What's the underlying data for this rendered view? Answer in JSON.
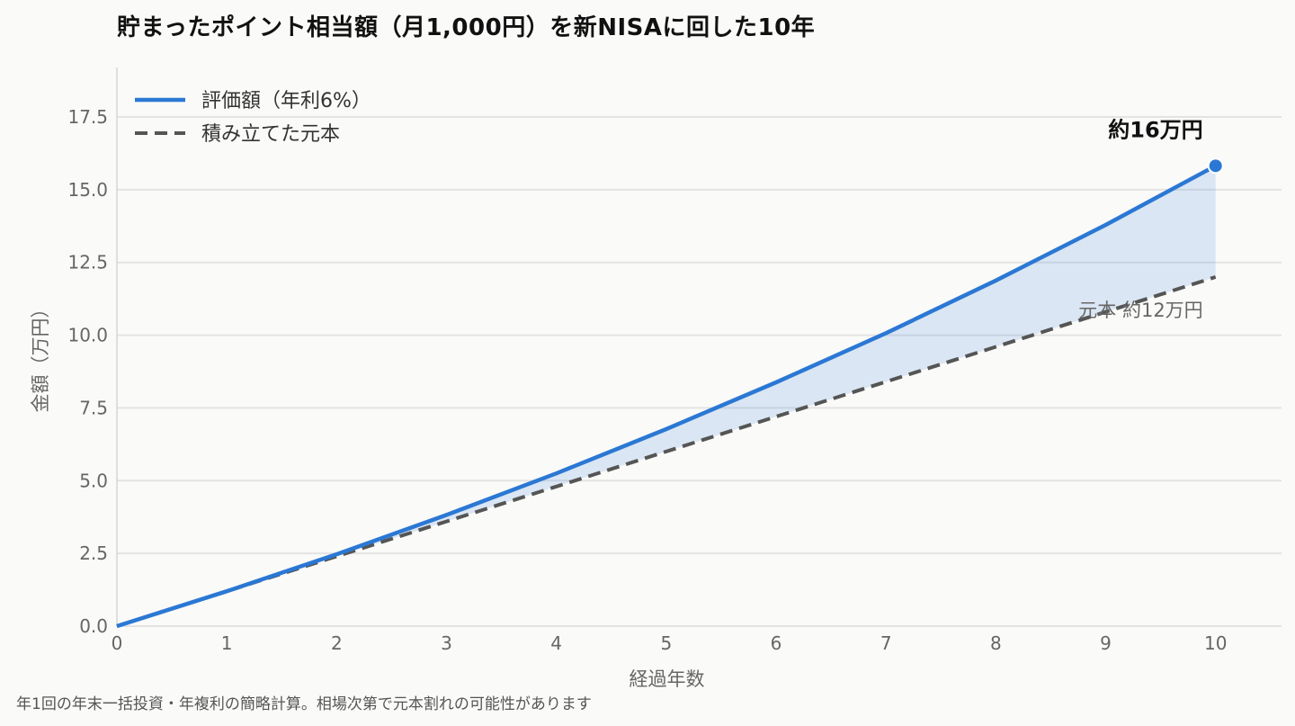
{
  "chart_data": {
    "type": "line",
    "title": "貯まったポイント相当額（月1,000円）を新NISAに回した10年",
    "xlabel": "経過年数",
    "ylabel": "金額（万円）",
    "x": [
      0,
      1,
      2,
      3,
      4,
      5,
      6,
      7,
      8,
      9,
      10
    ],
    "xlim": [
      0,
      10.6
    ],
    "ylim": [
      0,
      19.2
    ],
    "xticks": [
      "0",
      "1",
      "2",
      "3",
      "4",
      "5",
      "6",
      "7",
      "8",
      "9",
      "10"
    ],
    "yticks": [
      "0.0",
      "2.5",
      "5.0",
      "7.5",
      "10.0",
      "12.5",
      "15.0",
      "17.5"
    ],
    "grid": "horizontal",
    "legend_position": "top-left",
    "series": [
      {
        "name": "評価額（年利6%）",
        "style": "solid",
        "color": "#2b78d4",
        "values": [
          0,
          1.2,
          2.47,
          3.82,
          5.25,
          6.77,
          8.38,
          10.07,
          11.88,
          13.79,
          15.82
        ]
      },
      {
        "name": "積み立てた元本",
        "style": "dashed",
        "color": "#555555",
        "values": [
          0,
          1.2,
          2.4,
          3.6,
          4.8,
          6.0,
          7.2,
          8.4,
          9.6,
          10.8,
          12.0
        ]
      }
    ],
    "fill_between": {
      "color": "#2b78d4",
      "opacity": 0.15
    },
    "annotations": {
      "end_value": "約16万円",
      "principal": "元本 約12万円"
    }
  },
  "footnote": "年1回の年末一括投資・年複利の簡略計算。相場次第で元本割れの可能性があります"
}
